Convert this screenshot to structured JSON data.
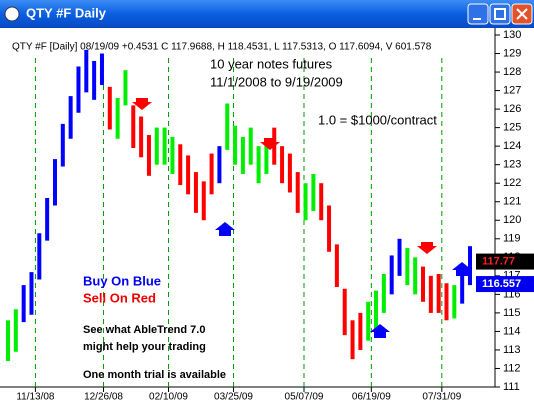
{
  "window": {
    "title": "QTY #F Daily"
  },
  "chart_data": {
    "type": "price_bars",
    "header": "QTY #F [Daily] 08/19/09 +0.4531 C 117.9688, H 118.4531, L 117.5313, O 117.6094, V 601.578",
    "annotations": [
      "10 year notes futures",
      "11/1/2008 to 9/19/2009",
      "1.0 = $1000/contract"
    ],
    "legend": [
      {
        "text": "Buy On Blue",
        "color": "#0000ee"
      },
      {
        "text": "Sell On Red",
        "color": "#ee0000"
      }
    ],
    "promo": [
      "See what AbleTrend 7.0",
      "might help your trading",
      "One month trial is available"
    ],
    "palette": {
      "B": "#0000ff",
      "G": "#00ee00",
      "R": "#ff0000"
    },
    "bar_colors": [
      "G",
      "G",
      "B",
      "B",
      "B",
      "B",
      "B",
      "B",
      "B",
      "B",
      "B",
      "B",
      "B",
      "R",
      "G",
      "G",
      "R",
      "R",
      "R",
      "G",
      "G",
      "G",
      "R",
      "R",
      "R",
      "R",
      "R",
      "B",
      "G",
      "G",
      "G",
      "G",
      "G",
      "G",
      "R",
      "R",
      "R",
      "R",
      "G",
      "G",
      "R",
      "R",
      "R",
      "R",
      "R",
      "R",
      "G",
      "G",
      "G",
      "B",
      "B",
      "G",
      "G",
      "R",
      "R",
      "R",
      "R",
      "G",
      "B",
      "B"
    ],
    "high": [
      114.6,
      115.2,
      116.5,
      117.2,
      119.3,
      121.2,
      123.3,
      125.2,
      126.7,
      128.3,
      129.2,
      128.6,
      129.0,
      127.2,
      126.6,
      128.1,
      126.2,
      125.6,
      124.6,
      125.0,
      125.0,
      124.5,
      124.1,
      123.5,
      122.6,
      122.1,
      123.6,
      124.0,
      126.3,
      125.1,
      124.5,
      125.0,
      124.0,
      124.4,
      125.0,
      124.0,
      123.6,
      122.6,
      122.0,
      122.5,
      122.0,
      120.8,
      118.7,
      116.3,
      114.6,
      115.0,
      115.6,
      116.2,
      117.1,
      118.1,
      119.0,
      118.5,
      118.0,
      117.5,
      117.0,
      117.1,
      116.6,
      116.5,
      117.6,
      118.6
    ],
    "low": [
      112.4,
      112.9,
      114.5,
      114.9,
      116.8,
      118.9,
      120.8,
      122.9,
      124.4,
      125.8,
      126.9,
      126.5,
      127.3,
      124.9,
      124.4,
      126.2,
      123.9,
      123.4,
      122.4,
      123.0,
      123.0,
      122.5,
      121.9,
      121.4,
      120.4,
      120.0,
      121.4,
      122.0,
      123.8,
      123.0,
      122.5,
      123.0,
      122.0,
      122.5,
      123.0,
      122.0,
      121.5,
      120.4,
      120.0,
      120.5,
      120.0,
      118.3,
      116.4,
      113.8,
      112.5,
      113.0,
      113.5,
      113.9,
      115.0,
      116.0,
      117.0,
      116.5,
      116.0,
      115.6,
      115.0,
      115.0,
      114.6,
      114.7,
      115.5,
      116.5
    ],
    "xticks": [
      {
        "value": 3.5,
        "label": "11/13/08"
      },
      {
        "value": 12.2,
        "label": "12/26/08"
      },
      {
        "value": 20.5,
        "label": "02/10/09"
      },
      {
        "value": 28.8,
        "label": "03/25/09"
      },
      {
        "value": 37.8,
        "label": "05/07/09"
      },
      {
        "value": 46.4,
        "label": "06/19/09"
      },
      {
        "value": 55.4,
        "label": "07/31/09"
      }
    ],
    "ylim": [
      111,
      130
    ],
    "yticks": [
      111,
      112,
      113,
      114,
      115,
      116,
      117,
      118,
      119,
      120,
      121,
      122,
      123,
      124,
      125,
      126,
      127,
      128,
      129,
      130
    ],
    "price_tags": [
      {
        "value": 117.77,
        "label": "117.77",
        "color": "#ff0000"
      },
      {
        "value": 116.557,
        "label": "116.557",
        "color": "#0000ee"
      }
    ],
    "grid": true
  }
}
